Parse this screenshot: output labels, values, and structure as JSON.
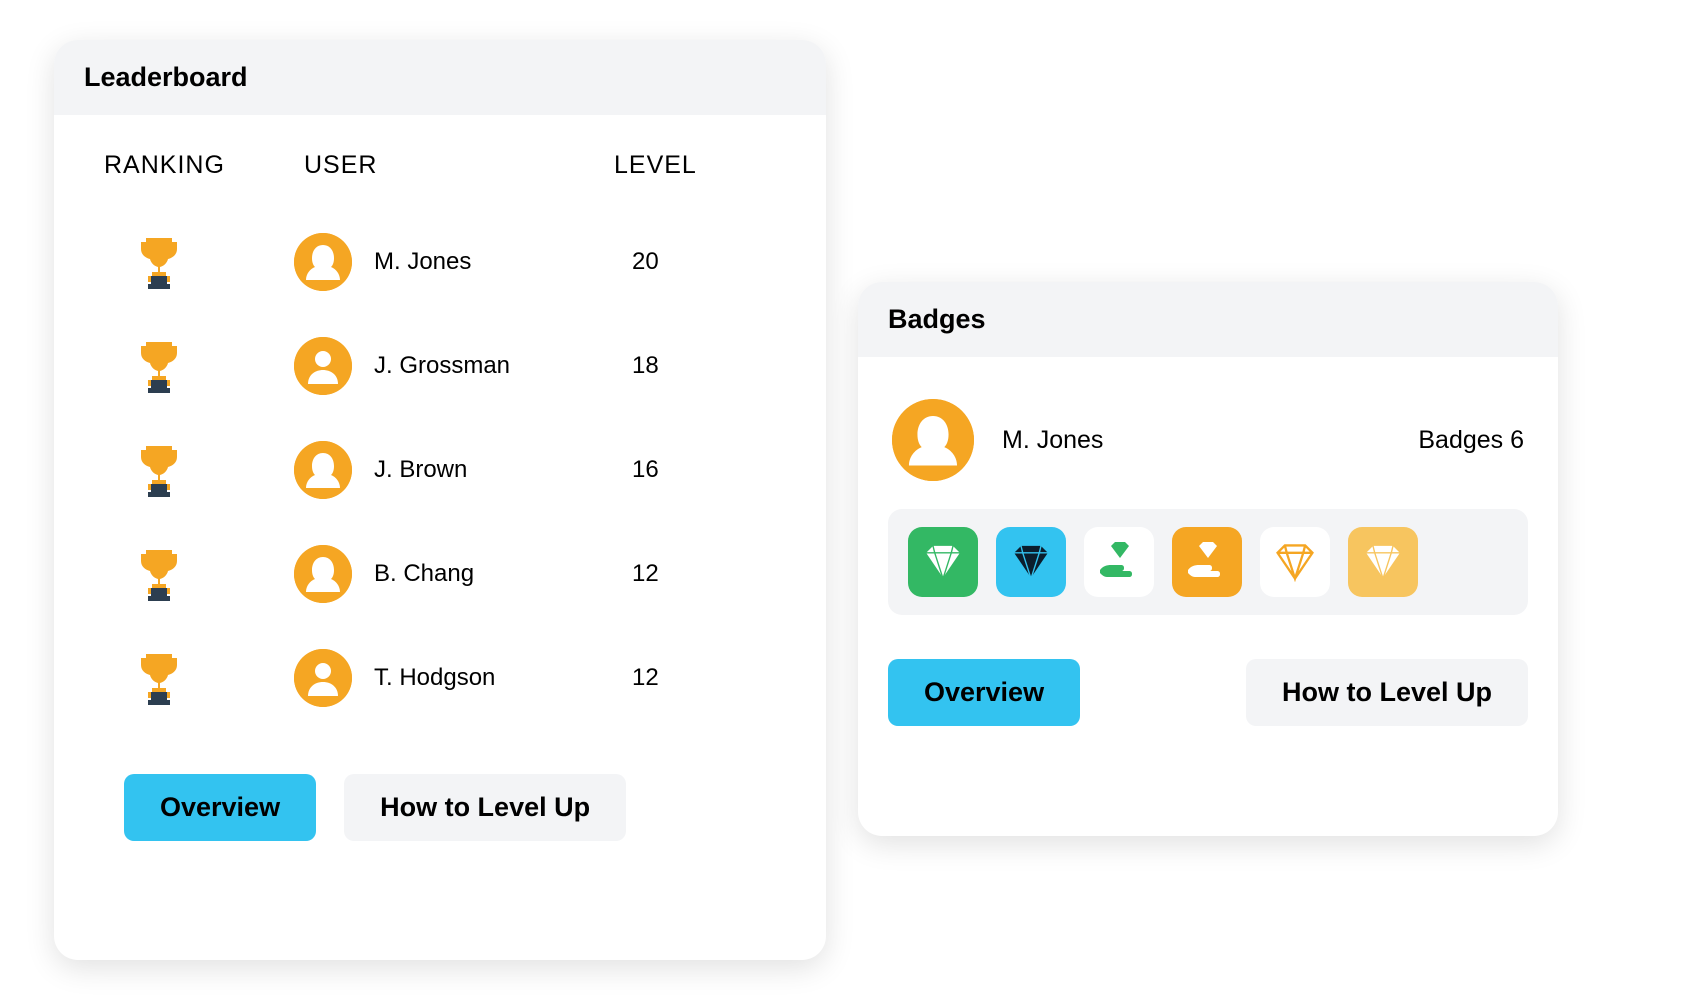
{
  "colors": {
    "card_bg": "#ffffff",
    "card_header_bg": "#f3f4f6",
    "text": "#000000",
    "btn_primary_bg": "#33c3f0",
    "btn_secondary_bg": "#f3f4f6",
    "avatar_bg": "#f5a623",
    "trophy_cup": "#f5a623",
    "trophy_base": "#2c3e50",
    "badge_strip_bg": "#f3f4f6"
  },
  "leaderboard": {
    "title": "Leaderboard",
    "columns": {
      "ranking": "RANKING",
      "user": "USER",
      "level": "LEVEL"
    },
    "rows": [
      {
        "name": "M. Jones",
        "level": "20",
        "avatar": "female"
      },
      {
        "name": "J. Grossman",
        "level": "18",
        "avatar": "male"
      },
      {
        "name": "J. Brown",
        "level": "16",
        "avatar": "female"
      },
      {
        "name": "B. Chang",
        "level": "12",
        "avatar": "female"
      },
      {
        "name": "T. Hodgson",
        "level": "12",
        "avatar": "male"
      }
    ],
    "buttons": {
      "overview": "Overview",
      "levelup": "How to Level Up"
    }
  },
  "badges": {
    "title": "Badges",
    "user": {
      "name": "M. Jones",
      "avatar": "female"
    },
    "count_label": "Badges 6",
    "items": [
      {
        "tile_bg": "#33b864",
        "icon": "diamond",
        "icon_color": "#ffffff"
      },
      {
        "tile_bg": "#33c3f0",
        "icon": "diamond",
        "icon_color": "#0b1e2d"
      },
      {
        "tile_bg": "#ffffff",
        "icon": "hand-diamond",
        "icon_color": "#33b864"
      },
      {
        "tile_bg": "#f5a623",
        "icon": "hand-diamond",
        "icon_color": "#ffffff"
      },
      {
        "tile_bg": "#ffffff",
        "icon": "diamond-outline",
        "icon_color": "#f5a623"
      },
      {
        "tile_bg": "#f7c55f",
        "icon": "diamond",
        "icon_color": "#ffffff"
      }
    ],
    "buttons": {
      "overview": "Overview",
      "levelup": "How to Level Up"
    }
  }
}
